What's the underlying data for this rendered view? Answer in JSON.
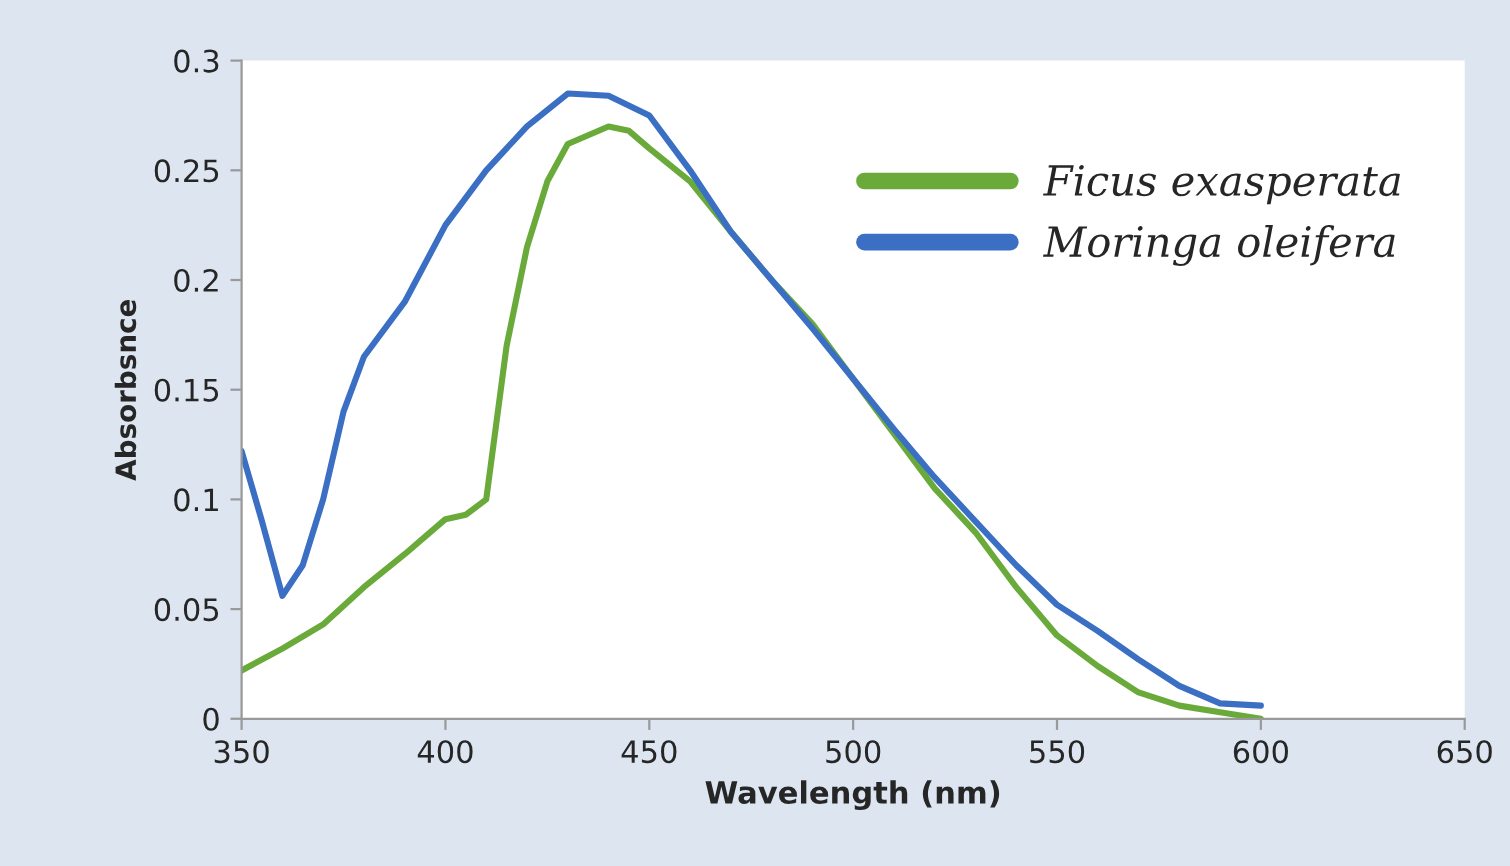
{
  "chart_data": {
    "type": "line",
    "xlabel": "Wavelength (nm)",
    "ylabel": "Absorbsnce",
    "xlim": [
      350,
      650
    ],
    "xticks": [
      350,
      400,
      450,
      500,
      550,
      600,
      650
    ],
    "ylim": [
      0,
      0.3
    ],
    "yticks": [
      0,
      0.05,
      0.1,
      0.15,
      0.2,
      0.25,
      0.3
    ],
    "grid": false,
    "legend": "top right",
    "marker": "none",
    "line_style": "solid",
    "series": [
      {
        "name": "Ficus exasperata",
        "color": "#6aaa3a",
        "x": [
          350,
          360,
          370,
          380,
          390,
          400,
          405,
          410,
          415,
          420,
          425,
          430,
          440,
          445,
          450,
          460,
          470,
          480,
          490,
          500,
          510,
          520,
          530,
          540,
          550,
          560,
          570,
          580,
          590,
          600
        ],
        "values": [
          0.022,
          0.032,
          0.043,
          0.06,
          0.075,
          0.091,
          0.093,
          0.1,
          0.17,
          0.215,
          0.245,
          0.262,
          0.27,
          0.268,
          0.26,
          0.245,
          0.222,
          0.2,
          0.18,
          0.155,
          0.13,
          0.105,
          0.085,
          0.06,
          0.038,
          0.024,
          0.012,
          0.006,
          0.003,
          0.0
        ]
      },
      {
        "name": "Moringa oleifera",
        "color": "#3a6fc4",
        "x": [
          350,
          355,
          360,
          365,
          370,
          375,
          380,
          390,
          400,
          410,
          420,
          430,
          440,
          450,
          460,
          470,
          480,
          490,
          500,
          510,
          520,
          530,
          540,
          550,
          560,
          570,
          580,
          590,
          600
        ],
        "values": [
          0.122,
          0.09,
          0.056,
          0.07,
          0.1,
          0.14,
          0.165,
          0.19,
          0.225,
          0.25,
          0.27,
          0.285,
          0.284,
          0.275,
          0.25,
          0.222,
          0.2,
          0.178,
          0.155,
          0.132,
          0.11,
          0.09,
          0.07,
          0.052,
          0.04,
          0.027,
          0.015,
          0.007,
          0.006
        ]
      }
    ]
  }
}
